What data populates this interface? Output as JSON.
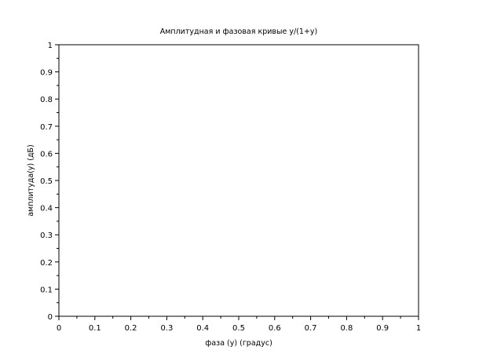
{
  "chart_data": {
    "type": "line",
    "title": "Амплитудная и фазовая кривые y/(1+y)",
    "xlabel": "фаза (y) (градус)",
    "ylabel": "амплитуда(y) (дБ)",
    "xlim": [
      0,
      1
    ],
    "ylim": [
      0,
      1
    ],
    "xticks": [
      "0",
      "0.1",
      "0.2",
      "0.3",
      "0.4",
      "0.5",
      "0.6",
      "0.7",
      "0.8",
      "0.9",
      "1"
    ],
    "yticks": [
      "0",
      "0.1",
      "0.2",
      "0.3",
      "0.4",
      "0.5",
      "0.6",
      "0.7",
      "0.8",
      "0.9",
      "1"
    ],
    "grid": false,
    "series": []
  }
}
